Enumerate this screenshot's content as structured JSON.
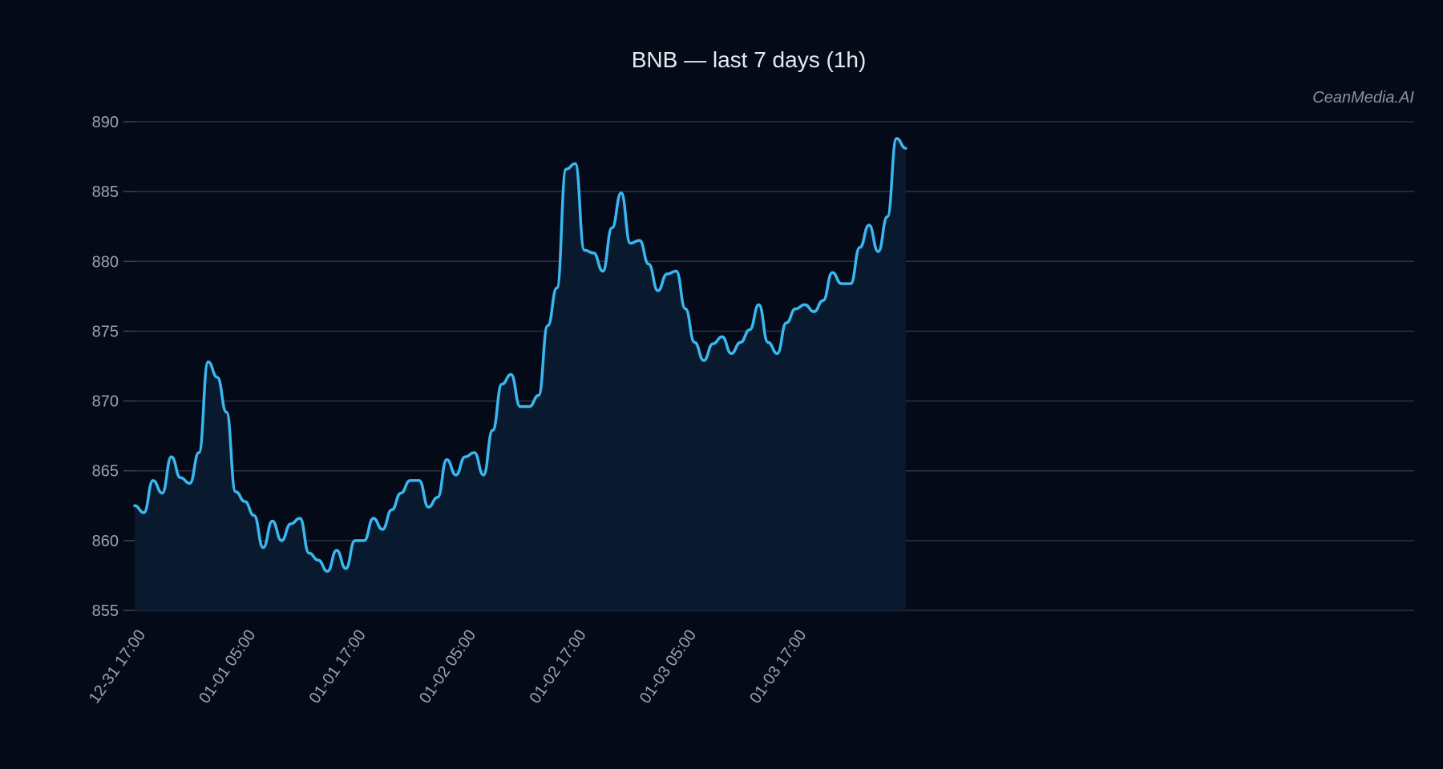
{
  "chart_data": {
    "type": "area",
    "title": "BNB — last 7 days (1h)",
    "watermark": "CeanMedia.AI",
    "xlabel": "",
    "ylabel": "",
    "ylim": [
      855,
      890
    ],
    "yticks": [
      855,
      860,
      865,
      870,
      875,
      880,
      885,
      890
    ],
    "grid": true,
    "x_start": "12-31 17:00",
    "x_interval_hours": 1,
    "xtick_labels": [
      "12-31 17:00",
      "01-01 05:00",
      "01-01 17:00",
      "01-02 05:00",
      "01-02 17:00",
      "01-03 05:00",
      "01-03 17:00"
    ],
    "colors": {
      "line": "#3ab7f0",
      "fill": "#0a1a2e",
      "background": "#050a19",
      "grid": "#2a3344"
    },
    "series": [
      {
        "values": [
          862.5,
          862.0,
          864.3,
          863.4,
          866.0,
          864.5,
          864.1,
          866.3,
          872.8,
          871.7,
          869.2,
          863.5,
          862.8,
          861.8,
          859.5,
          861.4,
          860.0,
          861.2,
          861.6,
          859.1,
          858.6,
          857.8,
          859.3,
          858.0,
          860.0,
          860.0,
          861.6,
          860.8,
          862.2,
          863.4,
          864.3,
          864.3,
          862.4,
          863.1,
          865.8,
          864.7,
          866.0,
          866.3,
          864.7,
          867.9,
          871.2,
          871.9,
          869.6,
          869.6,
          870.4,
          875.4,
          878.1,
          886.6,
          887.0,
          880.8,
          880.6,
          879.3,
          882.4,
          884.9,
          881.3,
          881.5,
          879.8,
          877.9,
          879.1,
          879.3,
          876.6,
          874.2,
          872.9,
          874.1,
          874.6,
          873.4,
          874.2,
          875.1,
          876.9,
          874.2,
          873.4,
          875.6,
          876.6,
          876.9,
          876.4,
          877.2,
          879.2,
          878.4,
          878.4,
          881.0,
          882.6,
          880.7,
          883.2,
          888.8,
          888.1
        ]
      }
    ]
  }
}
